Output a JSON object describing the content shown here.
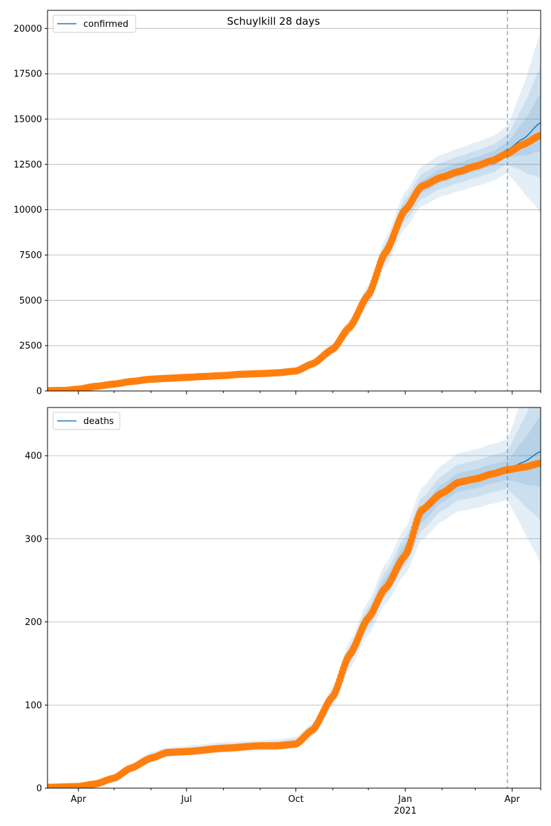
{
  "colors": {
    "model": "#1f77b4",
    "observed": "#ff7f0e",
    "band": "#1f77b4",
    "grid": "#b0b0b0",
    "vline": "#1f77b4"
  },
  "x_tick_labels": [
    "Apr",
    "Jul",
    "Oct",
    "Jan",
    "Apr"
  ],
  "x_year_label": "2021",
  "chart_data": [
    {
      "type": "line",
      "title": "Schuylkill 28 days",
      "xlabel": "",
      "ylabel": "",
      "legend": [
        "confirmed"
      ],
      "legend_position": "top-left",
      "grid": "horizontal",
      "ylim": [
        0,
        21000
      ],
      "xlim": [
        "2020-03-06",
        "2021-04-25"
      ],
      "y_ticks": [
        0,
        2500,
        5000,
        7500,
        10000,
        12500,
        15000,
        17500,
        20000
      ],
      "y_tick_labels": [
        "0",
        "2500",
        "5000",
        "7500",
        "10000",
        "12500",
        "15000",
        "17500",
        "20000"
      ],
      "forecast_start": "2021-03-28",
      "series": [
        {
          "name": "confirmed",
          "kind": "model",
          "x": [
            "2020-03-06",
            "2020-04-01",
            "2020-05-01",
            "2020-06-01",
            "2020-07-01",
            "2020-08-01",
            "2020-09-01",
            "2020-10-01",
            "2020-10-15",
            "2020-11-01",
            "2020-11-15",
            "2020-12-01",
            "2020-12-15",
            "2021-01-01",
            "2021-01-15",
            "2021-02-01",
            "2021-02-15",
            "2021-03-01",
            "2021-03-15",
            "2021-03-28",
            "2021-04-10",
            "2021-04-25"
          ],
          "values": [
            20,
            100,
            380,
            650,
            750,
            850,
            960,
            1100,
            1500,
            2300,
            3500,
            5300,
            7600,
            10000,
            11300,
            11900,
            12200,
            12500,
            12800,
            13300,
            13900,
            14800
          ]
        },
        {
          "name": "confirmed (observed)",
          "kind": "observed",
          "x": [
            "2020-03-06",
            "2020-03-20",
            "2020-04-01",
            "2020-04-15",
            "2020-05-01",
            "2020-05-15",
            "2020-06-01",
            "2020-06-15",
            "2020-07-01",
            "2020-07-15",
            "2020-08-01",
            "2020-08-15",
            "2020-09-01",
            "2020-09-15",
            "2020-10-01",
            "2020-10-15",
            "2020-11-01",
            "2020-11-15",
            "2020-12-01",
            "2020-12-15",
            "2021-01-01",
            "2021-01-15",
            "2021-02-01",
            "2021-02-15",
            "2021-03-01",
            "2021-03-15",
            "2021-03-28",
            "2021-04-10",
            "2021-04-25"
          ],
          "values": [
            20,
            30,
            100,
            250,
            380,
            520,
            650,
            700,
            750,
            800,
            850,
            920,
            960,
            1000,
            1100,
            1500,
            2300,
            3500,
            5300,
            7600,
            10000,
            11300,
            11800,
            12100,
            12400,
            12700,
            13100,
            13600,
            14100
          ]
        }
      ]
    },
    {
      "type": "line",
      "title": "",
      "xlabel": "",
      "ylabel": "",
      "legend": [
        "deaths"
      ],
      "legend_position": "top-left",
      "grid": "horizontal",
      "ylim": [
        0,
        458
      ],
      "xlim": [
        "2020-03-06",
        "2021-04-25"
      ],
      "y_ticks": [
        0,
        100,
        200,
        300,
        400
      ],
      "y_tick_labels": [
        "0",
        "100",
        "200",
        "300",
        "400"
      ],
      "forecast_start": "2021-03-28",
      "series": [
        {
          "name": "deaths",
          "kind": "model",
          "x": [
            "2020-03-06",
            "2020-04-01",
            "2020-04-15",
            "2020-05-01",
            "2020-05-15",
            "2020-06-01",
            "2020-06-15",
            "2020-07-01",
            "2020-08-01",
            "2020-09-01",
            "2020-09-15",
            "2020-10-01",
            "2020-10-15",
            "2020-11-01",
            "2020-11-15",
            "2020-12-01",
            "2020-12-15",
            "2021-01-01",
            "2021-01-15",
            "2021-02-01",
            "2021-02-15",
            "2021-03-01",
            "2021-03-15",
            "2021-03-28",
            "2021-04-10",
            "2021-04-25"
          ],
          "values": [
            1,
            2,
            5,
            12,
            24,
            38,
            43,
            45,
            49,
            51,
            52,
            55,
            70,
            110,
            160,
            205,
            245,
            285,
            330,
            355,
            368,
            372,
            378,
            383,
            392,
            405
          ]
        },
        {
          "name": "deaths (observed)",
          "kind": "observed",
          "x": [
            "2020-03-06",
            "2020-04-01",
            "2020-04-15",
            "2020-05-01",
            "2020-05-15",
            "2020-06-01",
            "2020-06-15",
            "2020-07-01",
            "2020-08-01",
            "2020-09-01",
            "2020-09-15",
            "2020-10-01",
            "2020-10-15",
            "2020-11-01",
            "2020-11-15",
            "2020-12-01",
            "2020-12-15",
            "2021-01-01",
            "2021-01-15",
            "2021-02-01",
            "2021-02-15",
            "2021-03-01",
            "2021-03-15",
            "2021-03-28",
            "2021-04-10",
            "2021-04-25"
          ],
          "values": [
            1,
            2,
            5,
            12,
            24,
            36,
            43,
            44,
            48,
            51,
            51,
            53,
            70,
            110,
            160,
            205,
            240,
            280,
            335,
            355,
            368,
            372,
            378,
            383,
            386,
            391
          ]
        }
      ]
    }
  ]
}
